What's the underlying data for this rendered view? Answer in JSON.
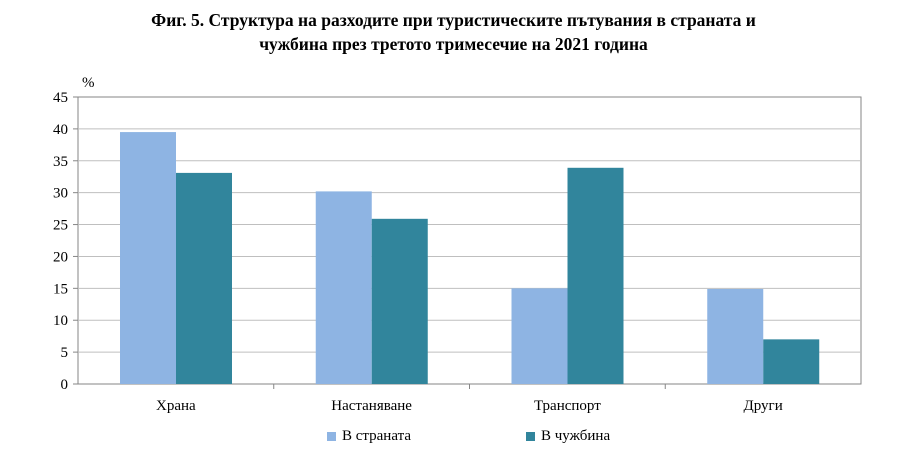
{
  "title_lines": [
    "Фиг. 5. Структура на разходите при туристическите пътувания в страната и",
    "чужбина през третото тримесечие на 2021 година"
  ],
  "chart_data": {
    "type": "bar",
    "title": "Фиг. 5. Структура на разходите при туристическите пътувания в страната и чужбина през третото тримесечие на 2021 година",
    "ylabel": "%",
    "xlabel": "",
    "ylim": [
      0,
      45
    ],
    "yticks": [
      0,
      5,
      10,
      15,
      20,
      25,
      30,
      35,
      40,
      45
    ],
    "grid": true,
    "legend_position": "bottom",
    "categories": [
      "Храна",
      "Настаняване",
      "Транспорт",
      "Други"
    ],
    "series": [
      {
        "name": "В страната",
        "color": "#8eb4e3",
        "values": [
          39.5,
          30.2,
          15.0,
          14.9
        ]
      },
      {
        "name": "В чужбина",
        "color": "#31859c",
        "values": [
          33.1,
          25.9,
          33.9,
          7.0
        ]
      }
    ]
  }
}
